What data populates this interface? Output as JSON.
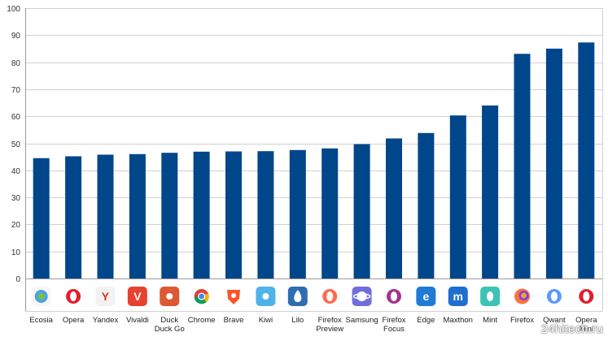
{
  "chart_data": {
    "type": "bar",
    "ylim": [
      0,
      100
    ],
    "yticks": [
      0,
      10,
      20,
      30,
      40,
      50,
      60,
      70,
      80,
      90,
      100
    ],
    "grid": true,
    "bar_color": "#00468b",
    "categories": [
      "Ecosia",
      "Opera",
      "Yandex",
      "Vivaldi",
      "Duck\nDuck Go",
      "Chrome",
      "Brave",
      "Kiwi",
      "Lilo",
      "Firefox\nPreview",
      "Samsung",
      "Firefox\nFocus",
      "Edge",
      "Maxthon",
      "Mint",
      "Firefox",
      "Qwant",
      "Opera\nMini"
    ],
    "values": [
      44.5,
      45.2,
      45.8,
      46,
      46.5,
      46.9,
      47,
      47.1,
      47.5,
      48.1,
      49.7,
      51.8,
      53.8,
      60.3,
      64,
      83.1,
      85,
      87.3
    ],
    "icons": [
      "ecosia-icon",
      "opera-icon",
      "yandex-icon",
      "vivaldi-icon",
      "duckduckgo-icon",
      "chrome-icon",
      "brave-icon",
      "kiwi-icon",
      "lilo-icon",
      "firefox-preview-icon",
      "samsung-icon",
      "firefox-focus-icon",
      "edge-icon",
      "maxthon-icon",
      "mint-icon",
      "firefox-icon",
      "qwant-icon",
      "opera-mini-icon"
    ]
  },
  "watermark": "24hitech.ru"
}
